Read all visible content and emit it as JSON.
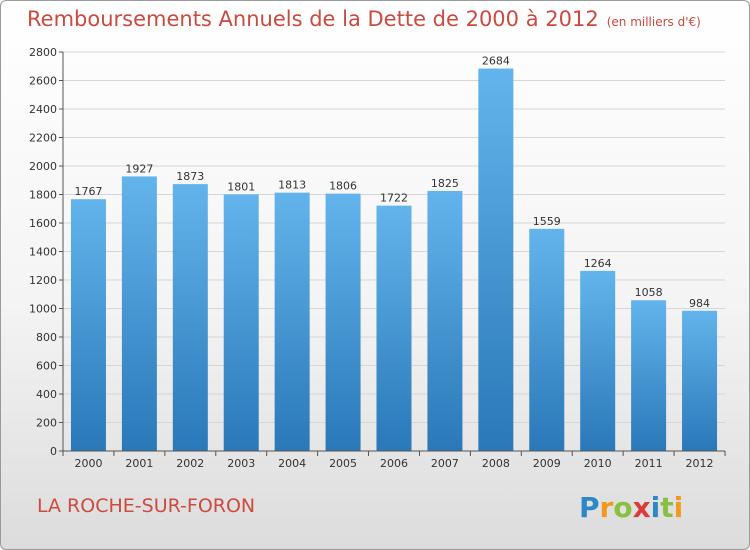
{
  "title": {
    "main": "Remboursements Annuels de la Dette de 2000 à 2012",
    "unit": "(en milliers d'€)"
  },
  "city": "LA ROCHE-SUR-FORON",
  "logo": {
    "text": "Proxiti",
    "letter_colors": [
      "#2e88c8",
      "#f29a1d",
      "#8ac03f",
      "#d93b3b",
      "#2e88c8",
      "#8ac03f",
      "#f29a1d"
    ]
  },
  "colors": {
    "bar_top": "#63b4ec",
    "bar_bottom": "#2a78b8",
    "title": "#cc4a3e"
  },
  "chart_data": {
    "type": "bar",
    "title": "Remboursements Annuels de la Dette de 2000 à 2012",
    "categories": [
      "2000",
      "2001",
      "2002",
      "2003",
      "2004",
      "2005",
      "2006",
      "2007",
      "2008",
      "2009",
      "2010",
      "2011",
      "2012"
    ],
    "values": [
      1767,
      1927,
      1873,
      1801,
      1813,
      1806,
      1722,
      1825,
      2684,
      1559,
      1264,
      1058,
      984
    ],
    "xlabel": "",
    "ylabel": "",
    "ylim": [
      0,
      2800
    ],
    "yticks": [
      0,
      200,
      400,
      600,
      800,
      1000,
      1200,
      1400,
      1600,
      1800,
      2000,
      2200,
      2400,
      2600,
      2800
    ],
    "grid": true
  }
}
